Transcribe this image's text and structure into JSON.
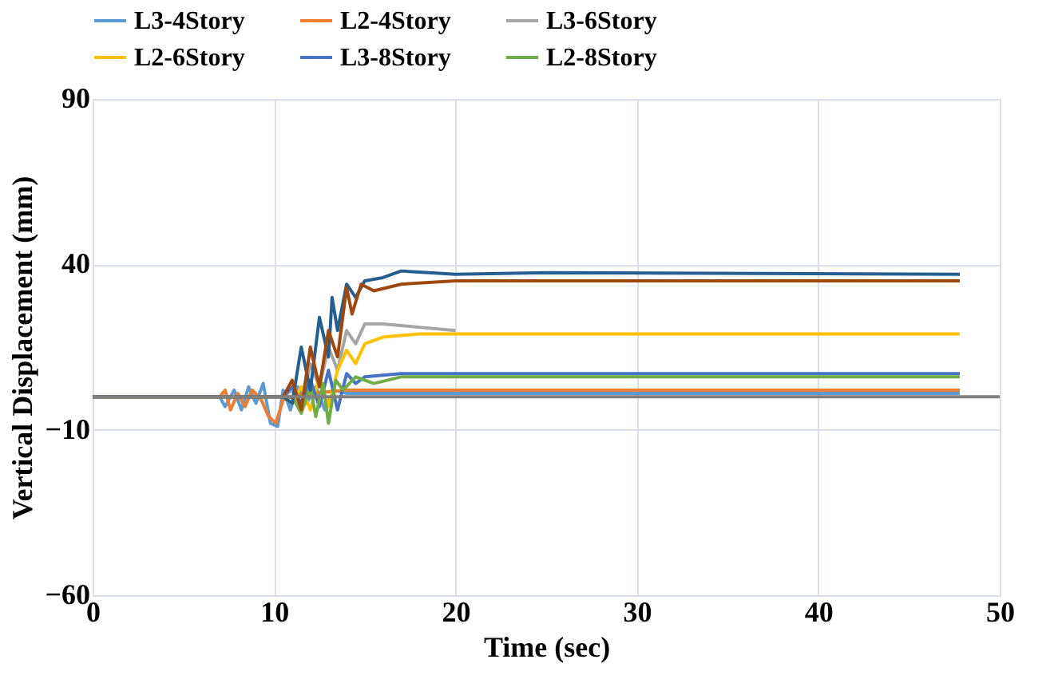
{
  "chart_data": {
    "type": "line",
    "xlabel": "Time (sec)",
    "ylabel": "Vertical Displacement (mm)",
    "xlim": [
      0,
      50
    ],
    "xticks": [
      0,
      10,
      20,
      30,
      40,
      50
    ],
    "ylim": [
      -60,
      90
    ],
    "yticks": [
      -60,
      -10,
      40,
      90
    ],
    "grid": true,
    "legend": "top",
    "marker": "none",
    "line_style": "solid",
    "ref_lines": [
      {
        "axis": "y",
        "value": 0,
        "color": "#808080"
      }
    ],
    "series": [
      {
        "name": "L3-4Story",
        "color": "#5b9bd5",
        "x": [
          0,
          7,
          7.3,
          7.8,
          8.2,
          8.6,
          9,
          9.4,
          9.8,
          10.2,
          10.5,
          10.9,
          11.3,
          11.8,
          12.3,
          12.8,
          13.3,
          14,
          16,
          20,
          47.8
        ],
        "values": [
          0,
          0,
          -3,
          2,
          -4,
          3,
          -2,
          4,
          -8,
          -9,
          2,
          -4,
          3,
          -2,
          3,
          -4,
          2,
          1,
          1,
          1,
          1
        ]
      },
      {
        "name": "L2-4Story",
        "color": "#ed7d31",
        "x": [
          0,
          7,
          7.3,
          7.6,
          8,
          8.4,
          8.8,
          9.3,
          9.7,
          10.1,
          10.5,
          11,
          12,
          14,
          20,
          47.8
        ],
        "values": [
          0,
          0,
          2,
          -4,
          1,
          -3,
          2,
          -1,
          -6,
          -8,
          -1,
          0,
          1,
          2,
          2,
          2
        ]
      },
      {
        "name": "L3-6Story",
        "color": "#a5a5a5",
        "x": [
          0,
          10.5,
          11,
          11.5,
          12,
          12.5,
          13,
          13.5,
          14,
          14.5,
          15,
          16,
          18,
          20
        ],
        "values": [
          0,
          0,
          2,
          -3,
          10,
          3,
          15,
          8,
          20,
          16,
          22,
          22,
          21,
          20
        ]
      },
      {
        "name": "L2-6Story",
        "color": "#ffc000",
        "x": [
          0,
          10.5,
          11,
          11.5,
          12,
          12.5,
          13,
          13.5,
          14,
          14.5,
          15,
          16,
          18,
          20,
          47.8
        ],
        "values": [
          0,
          0,
          -2,
          3,
          -4,
          6,
          -3,
          8,
          14,
          10,
          16,
          18,
          19,
          19,
          19
        ]
      },
      {
        "name": "L3-8Story",
        "color": "#4472c4",
        "x": [
          0,
          10.5,
          11,
          11.5,
          12,
          12.5,
          13,
          13.5,
          14,
          14.5,
          15,
          17,
          20,
          47.8
        ],
        "values": [
          0,
          0,
          3,
          -2,
          5,
          -3,
          8,
          -4,
          7,
          4,
          6,
          7,
          7,
          7
        ]
      },
      {
        "name": "L2-8Story",
        "color": "#70ad47",
        "x": [
          0,
          11,
          11.5,
          12,
          12.3,
          12.7,
          13,
          13.4,
          13.8,
          14.5,
          15.5,
          17,
          20,
          47.8
        ],
        "values": [
          0,
          0,
          -5,
          3,
          -6,
          4,
          -8,
          5,
          2,
          6,
          4,
          6,
          6,
          6
        ]
      },
      {
        "color": "#255e91",
        "x": [
          0,
          10.5,
          11,
          11.5,
          12,
          12.5,
          13,
          13.2,
          13.5,
          14,
          14.5,
          15,
          16,
          17,
          20,
          25,
          47.8
        ],
        "values": [
          0,
          0,
          -2,
          15,
          2,
          24,
          12,
          30,
          20,
          34,
          30,
          35,
          36,
          38,
          37,
          37.5,
          37
        ]
      },
      {
        "color": "#9e480e",
        "x": [
          0,
          10.5,
          11,
          11.5,
          12,
          12.5,
          13,
          13.5,
          14,
          14.3,
          14.8,
          15.5,
          17,
          20,
          25,
          47.8
        ],
        "values": [
          0,
          0,
          5,
          -4,
          15,
          3,
          20,
          12,
          33,
          25,
          34,
          32,
          34,
          35,
          35,
          35
        ]
      }
    ]
  }
}
